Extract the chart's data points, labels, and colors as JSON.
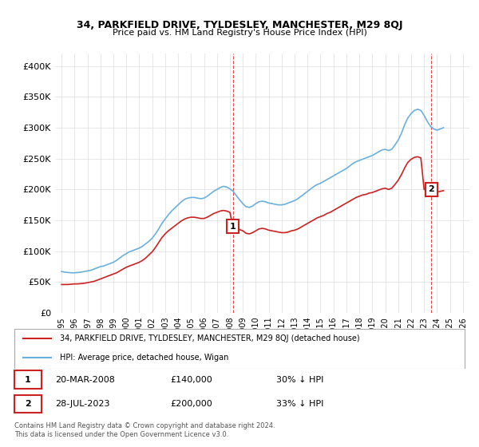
{
  "title": "34, PARKFIELD DRIVE, TYLDESLEY, MANCHESTER, M29 8QJ",
  "subtitle": "Price paid vs. HM Land Registry's House Price Index (HPI)",
  "ylabel_ticks": [
    "£0",
    "£50K",
    "£100K",
    "£150K",
    "£200K",
    "£250K",
    "£300K",
    "£350K",
    "£400K"
  ],
  "ytick_values": [
    0,
    50000,
    100000,
    150000,
    200000,
    250000,
    300000,
    350000,
    400000
  ],
  "ylim": [
    0,
    420000
  ],
  "hpi_color": "#6ab0de",
  "price_color": "#cc2222",
  "annotation_box_color": "#cc2222",
  "annotation1": {
    "x_year": 2008.22,
    "y": 140000,
    "label": "1"
  },
  "annotation2": {
    "x_year": 2023.57,
    "y": 200000,
    "label": "2"
  },
  "legend_label_red": "34, PARKFIELD DRIVE, TYLDESLEY, MANCHESTER, M29 8QJ (detached house)",
  "legend_label_blue": "HPI: Average price, detached house, Wigan",
  "table_row1": "1    20-MAR-2008         £140,000        30% ↓ HPI",
  "table_row2": "2    28-JUL-2023          £200,000        33% ↓ HPI",
  "footer": "Contains HM Land Registry data © Crown copyright and database right 2024.\nThis data is licensed under the Open Government Licence v3.0.",
  "background_color": "#ffffff",
  "grid_color": "#dddddd",
  "hpi_data": {
    "years": [
      1995.0,
      1995.25,
      1995.5,
      1995.75,
      1996.0,
      1996.25,
      1996.5,
      1996.75,
      1997.0,
      1997.25,
      1997.5,
      1997.75,
      1998.0,
      1998.25,
      1998.5,
      1998.75,
      1999.0,
      1999.25,
      1999.5,
      1999.75,
      2000.0,
      2000.25,
      2000.5,
      2000.75,
      2001.0,
      2001.25,
      2001.5,
      2001.75,
      2002.0,
      2002.25,
      2002.5,
      2002.75,
      2003.0,
      2003.25,
      2003.5,
      2003.75,
      2004.0,
      2004.25,
      2004.5,
      2004.75,
      2005.0,
      2005.25,
      2005.5,
      2005.75,
      2006.0,
      2006.25,
      2006.5,
      2006.75,
      2007.0,
      2007.25,
      2007.5,
      2007.75,
      2008.0,
      2008.25,
      2008.5,
      2008.75,
      2009.0,
      2009.25,
      2009.5,
      2009.75,
      2010.0,
      2010.25,
      2010.5,
      2010.75,
      2011.0,
      2011.25,
      2011.5,
      2011.75,
      2012.0,
      2012.25,
      2012.5,
      2012.75,
      2013.0,
      2013.25,
      2013.5,
      2013.75,
      2014.0,
      2014.25,
      2014.5,
      2014.75,
      2015.0,
      2015.25,
      2015.5,
      2015.75,
      2016.0,
      2016.25,
      2016.5,
      2016.75,
      2017.0,
      2017.25,
      2017.5,
      2017.75,
      2018.0,
      2018.25,
      2018.5,
      2018.75,
      2019.0,
      2019.25,
      2019.5,
      2019.75,
      2020.0,
      2020.25,
      2020.5,
      2020.75,
      2021.0,
      2021.25,
      2021.5,
      2021.75,
      2022.0,
      2022.25,
      2022.5,
      2022.75,
      2023.0,
      2023.25,
      2023.5,
      2023.75,
      2024.0,
      2024.25,
      2024.5
    ],
    "values": [
      67000,
      66000,
      65500,
      65000,
      65000,
      65500,
      66000,
      67000,
      68000,
      69000,
      71000,
      73000,
      75000,
      76000,
      78000,
      80000,
      82000,
      85000,
      89000,
      93000,
      96000,
      99000,
      101000,
      103000,
      105000,
      108000,
      112000,
      116000,
      121000,
      128000,
      136000,
      145000,
      152000,
      159000,
      165000,
      170000,
      175000,
      180000,
      184000,
      186000,
      187000,
      187000,
      186000,
      185000,
      186000,
      189000,
      193000,
      197000,
      200000,
      203000,
      205000,
      204000,
      201000,
      197000,
      190000,
      183000,
      177000,
      172000,
      171000,
      173000,
      177000,
      180000,
      181000,
      180000,
      178000,
      177000,
      176000,
      175000,
      175000,
      176000,
      178000,
      180000,
      182000,
      185000,
      189000,
      193000,
      197000,
      201000,
      205000,
      208000,
      210000,
      213000,
      216000,
      219000,
      222000,
      225000,
      228000,
      231000,
      234000,
      238000,
      242000,
      245000,
      247000,
      249000,
      251000,
      253000,
      255000,
      258000,
      261000,
      264000,
      265000,
      263000,
      265000,
      272000,
      280000,
      291000,
      305000,
      316000,
      323000,
      328000,
      330000,
      328000,
      320000,
      310000,
      302000,
      298000,
      296000,
      298000,
      300000
    ]
  },
  "price_data": {
    "years": [
      1995.0,
      1995.25,
      1995.5,
      1995.75,
      1996.0,
      1996.25,
      1996.5,
      1996.75,
      1997.0,
      1997.25,
      1997.5,
      1997.75,
      1998.0,
      1998.25,
      1998.5,
      1998.75,
      1999.0,
      1999.25,
      1999.5,
      1999.75,
      2000.0,
      2000.25,
      2000.5,
      2000.75,
      2001.0,
      2001.25,
      2001.5,
      2001.75,
      2002.0,
      2002.25,
      2002.5,
      2002.75,
      2003.0,
      2003.25,
      2003.5,
      2003.75,
      2004.0,
      2004.25,
      2004.5,
      2004.75,
      2005.0,
      2005.25,
      2005.5,
      2005.75,
      2006.0,
      2006.25,
      2006.5,
      2006.75,
      2007.0,
      2007.25,
      2007.5,
      2007.75,
      2008.0,
      2008.25,
      2008.5,
      2008.75,
      2009.0,
      2009.25,
      2009.5,
      2009.75,
      2010.0,
      2010.25,
      2010.5,
      2010.75,
      2011.0,
      2011.25,
      2011.5,
      2011.75,
      2012.0,
      2012.25,
      2012.5,
      2012.75,
      2013.0,
      2013.25,
      2013.5,
      2013.75,
      2014.0,
      2014.25,
      2014.5,
      2014.75,
      2015.0,
      2015.25,
      2015.5,
      2015.75,
      2016.0,
      2016.25,
      2016.5,
      2016.75,
      2017.0,
      2017.25,
      2017.5,
      2017.75,
      2018.0,
      2018.25,
      2018.5,
      2018.75,
      2019.0,
      2019.25,
      2019.5,
      2019.75,
      2020.0,
      2020.25,
      2020.5,
      2020.75,
      2021.0,
      2021.25,
      2021.5,
      2021.75,
      2022.0,
      2022.25,
      2022.5,
      2022.75,
      2023.0,
      2023.25,
      2023.5,
      2023.75,
      2024.0,
      2024.25,
      2024.5
    ],
    "values": [
      46000,
      46000,
      46000,
      46500,
      47000,
      47000,
      47500,
      48000,
      49000,
      50000,
      51000,
      53000,
      55000,
      57000,
      59000,
      61000,
      63000,
      65000,
      68000,
      71000,
      74000,
      76000,
      78000,
      80000,
      82000,
      85000,
      89000,
      94000,
      99000,
      106000,
      114000,
      122000,
      128000,
      133000,
      137000,
      141000,
      145000,
      149000,
      152000,
      154000,
      155000,
      155000,
      154000,
      153000,
      153000,
      155000,
      158000,
      161000,
      163000,
      165000,
      166000,
      165000,
      163000,
      140000,
      138000,
      135000,
      133000,
      129000,
      128000,
      130000,
      133000,
      136000,
      137000,
      136000,
      134000,
      133000,
      132000,
      131000,
      130000,
      130000,
      131000,
      133000,
      134000,
      136000,
      139000,
      142000,
      145000,
      148000,
      151000,
      154000,
      156000,
      158000,
      161000,
      163000,
      166000,
      169000,
      172000,
      175000,
      178000,
      181000,
      184000,
      187000,
      189000,
      191000,
      192000,
      194000,
      195000,
      197000,
      199000,
      201000,
      202000,
      200000,
      202000,
      208000,
      215000,
      224000,
      235000,
      244000,
      249000,
      252000,
      253000,
      251000,
      200000,
      198000,
      197000,
      196000,
      196000,
      197000,
      198000
    ]
  },
  "xlim": [
    1994.5,
    2026.5
  ],
  "xtick_years": [
    1995,
    1996,
    1997,
    1998,
    1999,
    2000,
    2001,
    2002,
    2003,
    2004,
    2005,
    2006,
    2007,
    2008,
    2009,
    2010,
    2011,
    2012,
    2013,
    2014,
    2015,
    2016,
    2017,
    2018,
    2019,
    2020,
    2021,
    2022,
    2023,
    2024,
    2025,
    2026
  ]
}
